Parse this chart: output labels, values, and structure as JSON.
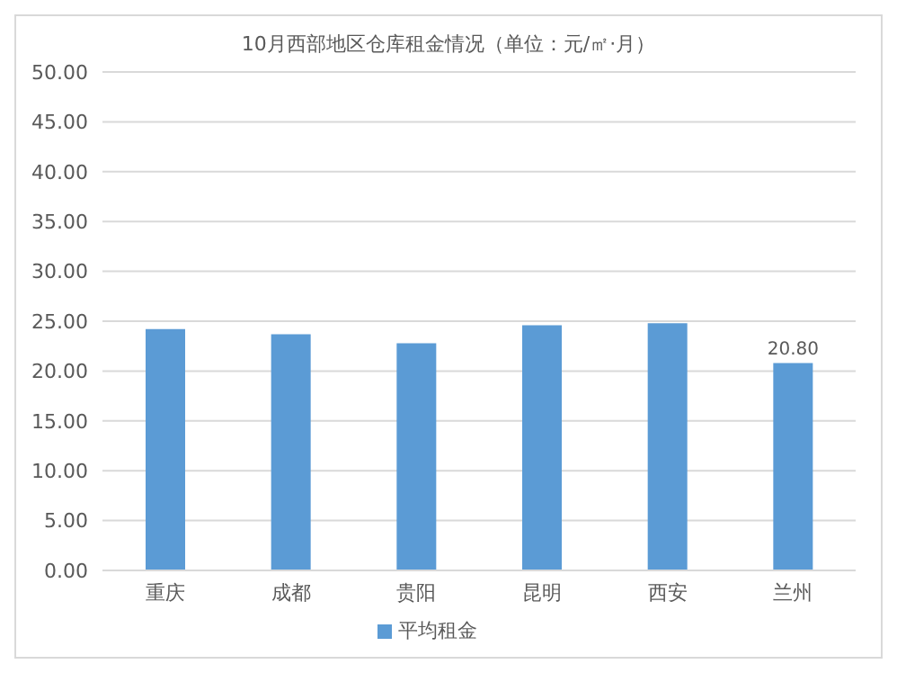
{
  "chart_data": {
    "type": "bar",
    "title": "10月西部地区仓库租金情况（单位：元/㎡·月）",
    "categories": [
      "重庆",
      "成都",
      "贵阳",
      "昆明",
      "西安",
      "兰州"
    ],
    "series": [
      {
        "name": "平均租金",
        "color": "#5b9bd5",
        "values": [
          24.2,
          23.7,
          22.8,
          24.6,
          24.8,
          20.8
        ],
        "value_labels": [
          null,
          null,
          null,
          null,
          null,
          "20.80"
        ]
      }
    ],
    "ylim": [
      0,
      50
    ],
    "yticks": [
      {
        "value": 0,
        "label": "0.00"
      },
      {
        "value": 5,
        "label": "5.00"
      },
      {
        "value": 10,
        "label": "10.00"
      },
      {
        "value": 15,
        "label": "15.00"
      },
      {
        "value": 20,
        "label": "20.00"
      },
      {
        "value": 25,
        "label": "25.00"
      },
      {
        "value": 30,
        "label": "30.00"
      },
      {
        "value": 35,
        "label": "35.00"
      },
      {
        "value": 40,
        "label": "40.00"
      },
      {
        "value": 45,
        "label": "45.00"
      },
      {
        "value": 50,
        "label": "50.00"
      }
    ],
    "grid": "y",
    "legend": "bottom"
  }
}
